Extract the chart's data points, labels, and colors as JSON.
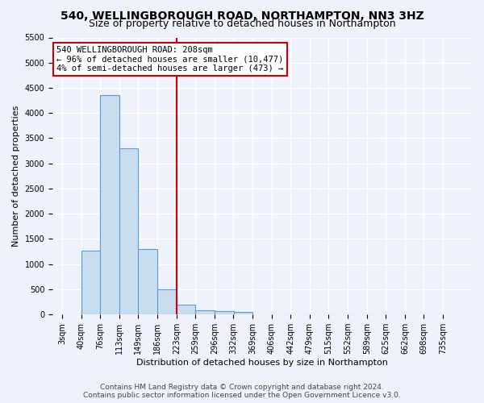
{
  "title": "540, WELLINGBOROUGH ROAD, NORTHAMPTON, NN3 3HZ",
  "subtitle": "Size of property relative to detached houses in Northampton",
  "xlabel": "Distribution of detached houses by size in Northampton",
  "ylabel": "Number of detached properties",
  "bar_color": "#c9ddf0",
  "bar_edge_color": "#5b9bd5",
  "vline_color": "#cc0000",
  "vline_x": 223,
  "annotation_box_color": "#cc0000",
  "bin_edges": [
    3,
    40,
    76,
    113,
    149,
    186,
    223,
    259,
    296,
    332,
    369,
    406,
    442,
    479,
    515,
    552,
    589,
    625,
    662,
    698,
    735
  ],
  "bar_heights": [
    0,
    1270,
    4350,
    3300,
    1300,
    500,
    200,
    90,
    60,
    50,
    0,
    0,
    0,
    0,
    0,
    0,
    0,
    0,
    0,
    0
  ],
  "ylim": [
    0,
    5500
  ],
  "yticks": [
    0,
    500,
    1000,
    1500,
    2000,
    2500,
    3000,
    3500,
    4000,
    4500,
    5000,
    5500
  ],
  "annotation_lines": [
    "540 WELLINGBOROUGH ROAD: 208sqm",
    "← 96% of detached houses are smaller (10,477)",
    "4% of semi-detached houses are larger (473) →"
  ],
  "footer_lines": [
    "Contains HM Land Registry data © Crown copyright and database right 2024.",
    "Contains public sector information licensed under the Open Government Licence v3.0."
  ],
  "background_color": "#eef2fb",
  "grid_color": "#ffffff",
  "title_fontsize": 10,
  "subtitle_fontsize": 9,
  "axis_label_fontsize": 8,
  "tick_fontsize": 7,
  "annotation_fontsize": 7.5,
  "footer_fontsize": 6.5
}
